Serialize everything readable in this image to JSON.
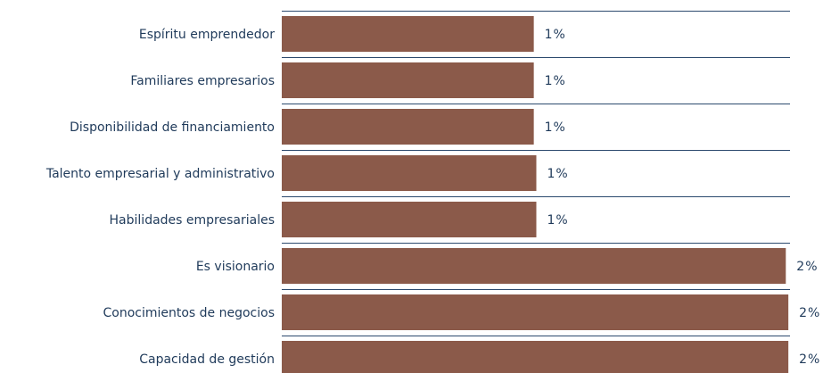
{
  "chart_data": {
    "type": "hbar",
    "categories": [
      "Espíritu emprendedor",
      "Familiares empresarios",
      "Disponibilidad de financiamiento",
      "Talento empresarial y administrativo",
      "Habilidades empresariales",
      "Es visionario",
      "Conocimientos de negocios",
      "Capacidad de gestión"
    ],
    "values": [
      0.99,
      0.99,
      0.99,
      1.0,
      1.0,
      1.98,
      1.99,
      1.99
    ],
    "value_labels": [
      "1%",
      "1%",
      "1%",
      "1%",
      "1%",
      "2%",
      "2%",
      "2%"
    ],
    "color": "#8b5a4a",
    "xlim": [
      0,
      2
    ]
  }
}
